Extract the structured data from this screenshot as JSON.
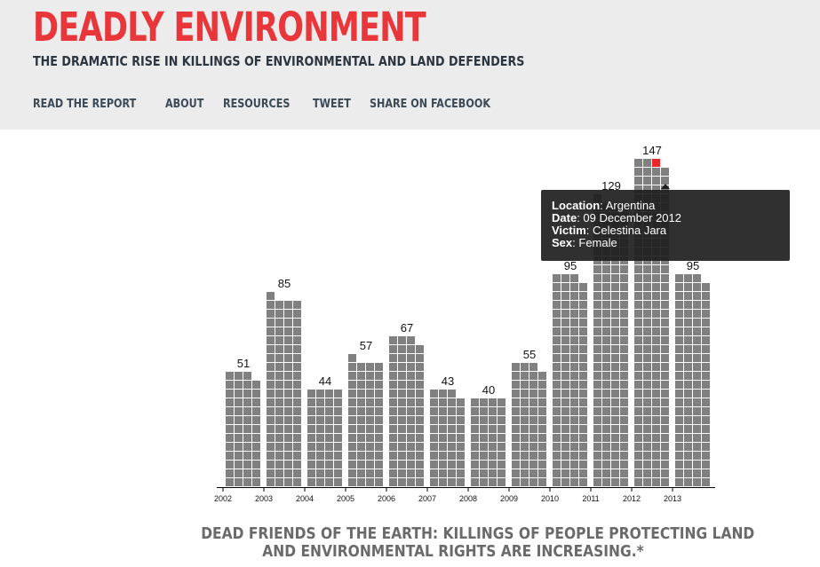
{
  "header": {
    "title": "DEADLY ENVIRONMENT",
    "subtitle": "THE DRAMATIC RISE IN KILLINGS OF ENVIRONMENTAL AND LAND DEFENDERS",
    "nav": [
      "READ THE REPORT",
      "ABOUT",
      "RESOURCES",
      "TWEET",
      "SHARE ON FACEBOOK"
    ]
  },
  "colors": {
    "title": "#e8363b",
    "subtitle": "#2c3640",
    "nav": "#3b4a56",
    "header_bg": "#ececec",
    "cell": "#808080",
    "highlight": "#e8262b",
    "tooltip_bg": "#1e1e1e",
    "caption": "#6a6a6a"
  },
  "chart_data": {
    "type": "bar",
    "categories": [
      "2002",
      "2003",
      "2004",
      "2005",
      "2006",
      "2007",
      "2008",
      "2009",
      "2010",
      "2011",
      "2012",
      "2013"
    ],
    "values": [
      51,
      85,
      44,
      57,
      67,
      43,
      40,
      55,
      95,
      129,
      147,
      95
    ],
    "value_labels": [
      "51",
      "85",
      "44",
      "57",
      "67",
      "43",
      "40",
      "55",
      "95",
      "129",
      "147",
      "95"
    ],
    "highlighted": {
      "year": "2012",
      "index": 146
    },
    "grid": false
  },
  "tooltip": {
    "rows": [
      {
        "key": "Location",
        "value": "Argentina"
      },
      {
        "key": "Date",
        "value": "09 December 2012"
      },
      {
        "key": "Victim",
        "value": "Celestina Jara"
      },
      {
        "key": "Sex",
        "value": "Female"
      }
    ]
  },
  "caption": {
    "line1": "DEAD FRIENDS OF THE EARTH: KILLINGS OF PEOPLE PROTECTING LAND",
    "line2": "AND ENVIRONMENTAL RIGHTS ARE INCREASING.*"
  }
}
